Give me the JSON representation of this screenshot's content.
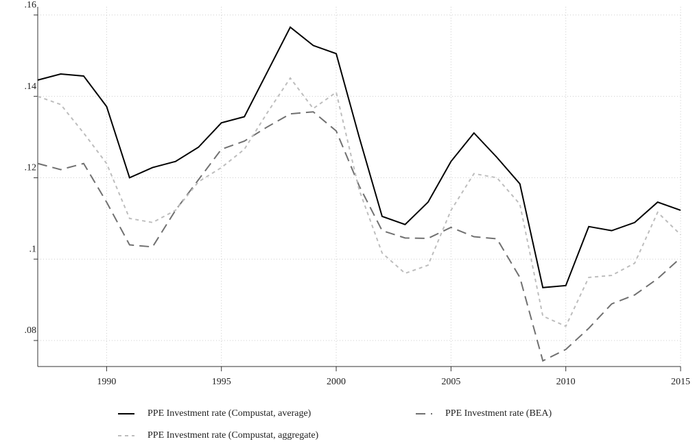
{
  "chart_data": {
    "type": "line",
    "x": [
      1987,
      1988,
      1989,
      1990,
      1991,
      1992,
      1993,
      1994,
      1995,
      1996,
      1997,
      1998,
      1999,
      2000,
      2001,
      2002,
      2003,
      2004,
      2005,
      2006,
      2007,
      2008,
      2009,
      2010,
      2011,
      2012,
      2013,
      2014,
      2015
    ],
    "series": [
      {
        "name": "PPE Investment rate (Compustat, average)",
        "color": "#000000",
        "dash": "solid",
        "values": [
          0.144,
          0.1455,
          0.145,
          0.1375,
          0.12,
          0.1225,
          0.124,
          0.1275,
          0.1335,
          0.135,
          0.146,
          0.157,
          0.1525,
          0.1505,
          0.13,
          0.1105,
          0.1085,
          0.114,
          0.124,
          0.131,
          0.125,
          0.1185,
          0.093,
          0.0935,
          0.108,
          0.107,
          0.109,
          0.114,
          0.112
        ]
      },
      {
        "name": "PPE Investment rate (BEA)",
        "color": "#707070",
        "dash": "long",
        "values": [
          0.1235,
          0.122,
          0.1235,
          0.114,
          0.1035,
          0.103,
          0.112,
          0.1195,
          0.127,
          0.129,
          0.1325,
          0.1357,
          0.1362,
          0.1315,
          0.118,
          0.107,
          0.1052,
          0.1051,
          0.1078,
          0.1055,
          0.105,
          0.0955,
          0.075,
          0.0778,
          0.083,
          0.089,
          0.0912,
          0.0952,
          0.1003
        ]
      },
      {
        "name": "PPE Investment rate (Compustat, aggregate)",
        "color": "#bdbdbd",
        "dash": "short",
        "values": [
          0.14,
          0.138,
          0.131,
          0.1235,
          0.11,
          0.109,
          0.112,
          0.119,
          0.1225,
          0.127,
          0.136,
          0.1445,
          0.137,
          0.141,
          0.117,
          0.1015,
          0.0965,
          0.0985,
          0.112,
          0.121,
          0.12,
          0.1135,
          0.086,
          0.0835,
          0.0955,
          0.096,
          0.099,
          0.1115,
          0.106
        ]
      }
    ],
    "xlim": [
      1987,
      2015
    ],
    "xticks": [
      1990,
      1995,
      2000,
      2005,
      2010,
      2015
    ],
    "ylim": [
      0.0736,
      0.162
    ],
    "yticks": [
      {
        "value": 0.08,
        "label": ".08"
      },
      {
        "value": 0.1,
        "label": ".1"
      },
      {
        "value": 0.12,
        "label": ".12"
      },
      {
        "value": 0.14,
        "label": ".14"
      },
      {
        "value": 0.16,
        "label": ".16"
      }
    ],
    "grid": true
  }
}
